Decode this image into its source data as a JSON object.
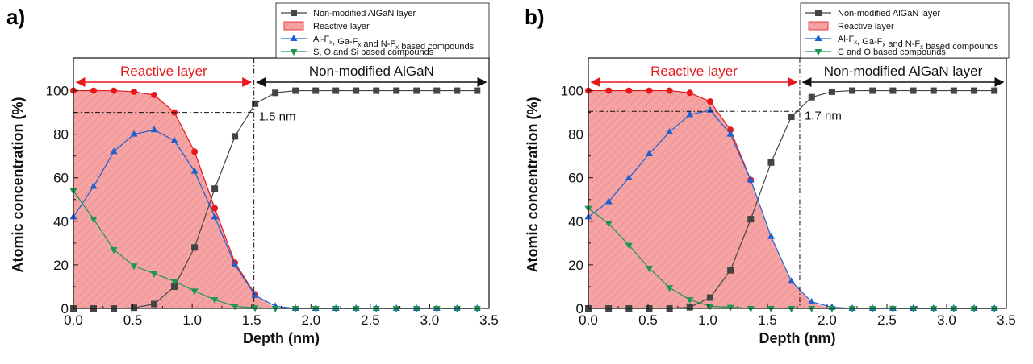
{
  "chart_data": [
    {
      "type": "line",
      "panel": "a)",
      "xlabel": "Depth (nm)",
      "ylabel": "Atomic concentration (%)",
      "xlim": [
        0,
        3.5
      ],
      "ylim": [
        0,
        115
      ],
      "xticks": [
        "0.0",
        "0.5",
        "1.0",
        "1.5",
        "2.0",
        "2.5",
        "3.0",
        "3.5"
      ],
      "yticks": [
        "0",
        "20",
        "40",
        "60",
        "80",
        "100"
      ],
      "legend_position": "top-right-outside",
      "legend": [
        {
          "label": "Non-modified AlGaN layer",
          "kind": "square"
        },
        {
          "label": "Reactive layer",
          "kind": "fill"
        },
        {
          "label": "Al-F",
          "sub1": "x",
          "mid1": ", Ga-F",
          "sub2": "x",
          "mid2": " and N-F",
          "sub3": "x",
          "tail": " based compounds",
          "kind": "up"
        },
        {
          "label": "S, O and Si  based compounds",
          "kind": "down"
        }
      ],
      "region_left_label": "Reactive layer",
      "region_right_label": "Non-modified AlGaN",
      "boundary_x": 1.52,
      "guide_y": 90,
      "annotation": "1.5 nm",
      "x": [
        0.0,
        0.17,
        0.34,
        0.51,
        0.68,
        0.85,
        1.02,
        1.19,
        1.36,
        1.53,
        1.7,
        1.87,
        2.04,
        2.21,
        2.38,
        2.55,
        2.72,
        2.89,
        3.06,
        3.23,
        3.4
      ],
      "reactive_layer": [
        100,
        100,
        100,
        99.5,
        98,
        90,
        72,
        46,
        21,
        6.5,
        0,
        0,
        0,
        0,
        0,
        0,
        0,
        0,
        0,
        0,
        0
      ],
      "series": [
        {
          "name": "Non-modified AlGaN layer",
          "color": "#444444",
          "marker": "square",
          "values": [
            0,
            0,
            0,
            0.3,
            2,
            10,
            28,
            55,
            79,
            94,
            99,
            100,
            100,
            100,
            100,
            100,
            100,
            100,
            100,
            100,
            100
          ]
        },
        {
          "name": "Reactive layer",
          "color": "#e8171c",
          "marker": "circle",
          "values": [
            100,
            100,
            100,
            99.5,
            98,
            90,
            72,
            46,
            21,
            6.5,
            null,
            null,
            null,
            null,
            null,
            null,
            null,
            null,
            null,
            null,
            null
          ]
        },
        {
          "name": "Al-Fx, Ga-Fx and N-Fx based compounds",
          "color": "#1f5fcf",
          "marker": "up",
          "values": [
            42,
            56,
            72,
            80,
            82,
            77,
            63,
            42,
            20,
            6,
            1,
            0,
            0,
            0,
            0,
            0,
            0,
            0,
            0,
            0,
            0
          ]
        },
        {
          "name": "S, O and Si  based compounds",
          "color": "#1a9850",
          "marker": "down",
          "values": [
            54,
            41,
            27,
            19.5,
            16,
            12.5,
            8,
            4,
            1,
            0.3,
            0,
            0,
            0,
            0,
            0,
            0,
            0,
            0,
            0,
            0,
            0
          ]
        }
      ]
    },
    {
      "type": "line",
      "panel": "b)",
      "xlabel": "Depth (nm)",
      "ylabel": "Atomic concentration (%)",
      "xlim": [
        0,
        3.5
      ],
      "ylim": [
        0,
        115
      ],
      "xticks": [
        "0.0",
        "0.5",
        "1.0",
        "1.5",
        "2.0",
        "2.5",
        "3.0",
        "3.5"
      ],
      "yticks": [
        "0",
        "20",
        "40",
        "60",
        "80",
        "100"
      ],
      "legend_position": "top-right-outside",
      "legend": [
        {
          "label": "Non-modified AlGaN layer",
          "kind": "square"
        },
        {
          "label": "Reactive layer",
          "kind": "fill"
        },
        {
          "label": "Al-F",
          "sub1": "x",
          "mid1": ", Ga-F",
          "sub2": "x",
          "mid2": " and N-F",
          "sub3": "x",
          "tail": " based compounds",
          "kind": "up"
        },
        {
          "label": "C and O based compounds",
          "kind": "down"
        }
      ],
      "region_left_label": "Reactive layer",
      "region_right_label": "Non-modified AlGaN layer",
      "boundary_x": 1.77,
      "guide_y": 90.5,
      "annotation": "1.7 nm",
      "x": [
        0.0,
        0.17,
        0.34,
        0.51,
        0.68,
        0.85,
        1.02,
        1.19,
        1.36,
        1.53,
        1.7,
        1.87,
        2.04,
        2.21,
        2.38,
        2.55,
        2.72,
        2.89,
        3.06,
        3.23,
        3.4
      ],
      "reactive_layer": [
        100,
        100,
        100,
        100,
        100,
        99,
        95,
        82,
        59,
        33,
        12.5,
        2.5,
        0,
        0,
        0,
        0,
        0,
        0,
        0,
        0,
        0
      ],
      "series": [
        {
          "name": "Non-modified AlGaN layer",
          "color": "#444444",
          "marker": "square",
          "values": [
            0,
            0,
            0,
            0,
            0,
            0.5,
            5,
            17.5,
            41,
            67,
            88,
            97,
            99.5,
            100,
            100,
            100,
            100,
            100,
            100,
            100,
            100
          ]
        },
        {
          "name": "Reactive layer",
          "color": "#e8171c",
          "marker": "circle",
          "values": [
            100,
            100,
            100,
            100,
            100,
            99,
            95,
            82,
            59,
            null,
            null,
            null,
            null,
            null,
            null,
            null,
            null,
            null,
            null,
            null,
            null
          ]
        },
        {
          "name": "Al-Fx, Ga-Fx and N-Fx based compounds",
          "color": "#1f5fcf",
          "marker": "up",
          "values": [
            42,
            49,
            60,
            71,
            81,
            89,
            91,
            80,
            59,
            33,
            12.5,
            3,
            0.5,
            0,
            0,
            0,
            0,
            0,
            0,
            0,
            0
          ]
        },
        {
          "name": "C and O based compounds",
          "color": "#1a9850",
          "marker": "down",
          "values": [
            46,
            39,
            29,
            18.5,
            9.5,
            4,
            1,
            0.5,
            0,
            0,
            0,
            0,
            0,
            0,
            0,
            0,
            0,
            0,
            0,
            0,
            0
          ]
        }
      ]
    }
  ]
}
